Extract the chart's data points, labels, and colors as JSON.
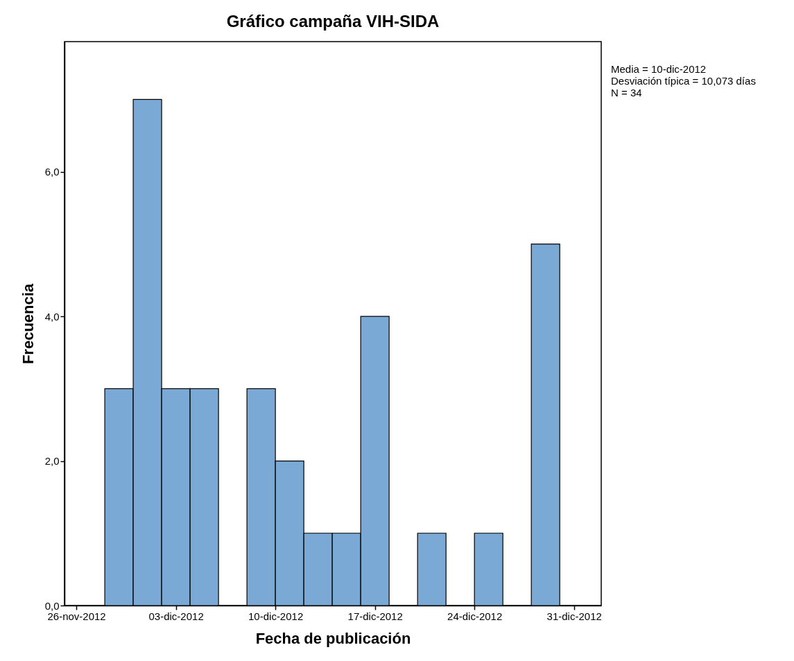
{
  "chart_data": {
    "type": "histogram",
    "title": "Gráfico campaña VIH-SIDA",
    "xlabel": "Fecha de publicación",
    "ylabel": "Frecuencia",
    "bins": [
      "2012-11-28",
      "2012-11-30",
      "2012-12-02",
      "2012-12-04",
      "2012-12-06",
      "2012-12-08",
      "2012-12-10",
      "2012-12-12",
      "2012-12-14",
      "2012-12-16",
      "2012-12-18",
      "2012-12-20",
      "2012-12-22",
      "2012-12-24",
      "2012-12-26",
      "2012-12-28",
      "2012-12-30"
    ],
    "values": [
      3,
      7,
      3,
      3,
      0,
      3,
      2,
      1,
      1,
      4,
      0,
      1,
      0,
      1,
      0,
      5
    ],
    "color": "#7ba9d6",
    "xlim": [
      "2012-11-25T04:00",
      "2013-01-01T22:00"
    ],
    "xticks": [
      {
        "value": "2012-11-26",
        "label": "26-nov-2012"
      },
      {
        "value": "2012-12-03",
        "label": "03-dic-2012"
      },
      {
        "value": "2012-12-10",
        "label": "10-dic-2012"
      },
      {
        "value": "2012-12-17",
        "label": "17-dic-2012"
      },
      {
        "value": "2012-12-24",
        "label": "24-dic-2012"
      },
      {
        "value": "2012-12-31",
        "label": "31-dic-2012"
      }
    ],
    "ylim": [
      0,
      7.8
    ],
    "yticks": [
      {
        "value": 0,
        "label": "0,0"
      },
      {
        "value": 2,
        "label": "2,0"
      },
      {
        "value": 4,
        "label": "4,0"
      },
      {
        "value": 6,
        "label": "6,0"
      }
    ],
    "annotations": [
      "Media = 10-dic-2012",
      "Desviación típica = 10,073 días",
      "N = 34"
    ],
    "grid": false
  }
}
